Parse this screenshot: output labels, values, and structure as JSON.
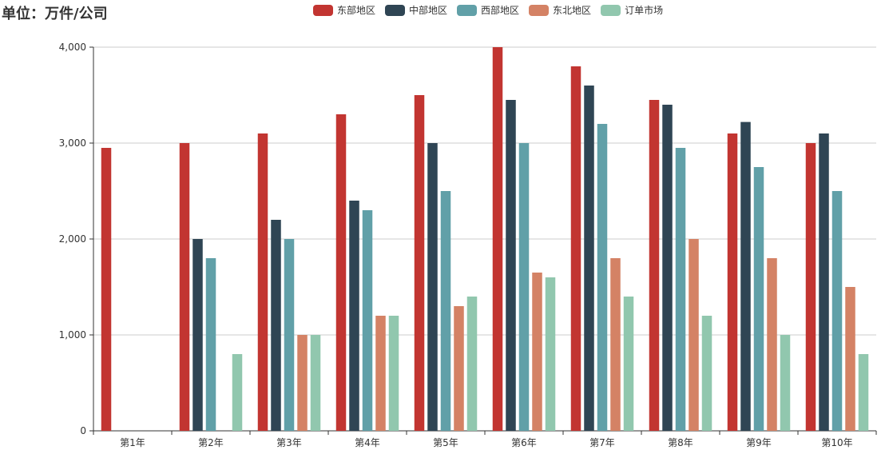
{
  "chart_data": {
    "type": "bar",
    "title": "单位：万件/公司",
    "categories": [
      "第1年",
      "第2年",
      "第3年",
      "第4年",
      "第5年",
      "第6年",
      "第7年",
      "第8年",
      "第9年",
      "第10年"
    ],
    "series": [
      {
        "name": "东部地区",
        "color": "#c23531",
        "values": [
          2950,
          3000,
          3100,
          3300,
          3500,
          4000,
          3800,
          3450,
          3100,
          3000
        ]
      },
      {
        "name": "中部地区",
        "color": "#2f4554",
        "values": [
          0,
          2000,
          2200,
          2400,
          3000,
          3450,
          3600,
          3400,
          3220,
          3100
        ]
      },
      {
        "name": "西部地区",
        "color": "#61a0a8",
        "values": [
          0,
          1800,
          2000,
          2300,
          2500,
          3000,
          3200,
          2950,
          2750,
          2500
        ]
      },
      {
        "name": "东北地区",
        "color": "#d48265",
        "values": [
          0,
          0,
          1000,
          1200,
          1300,
          1650,
          1800,
          2000,
          1800,
          1500
        ]
      },
      {
        "name": "订单市场",
        "color": "#91c7ae",
        "values": [
          0,
          800,
          1000,
          1200,
          1400,
          1600,
          1400,
          1200,
          1000,
          800
        ]
      }
    ],
    "ylim": [
      0,
      4000
    ],
    "yticks": [
      0,
      1000,
      2000,
      3000,
      4000
    ],
    "ytick_labels": [
      "0",
      "1,000",
      "2,000",
      "3,000",
      "4,000"
    ],
    "grid": true,
    "legend_position": "top-center"
  }
}
